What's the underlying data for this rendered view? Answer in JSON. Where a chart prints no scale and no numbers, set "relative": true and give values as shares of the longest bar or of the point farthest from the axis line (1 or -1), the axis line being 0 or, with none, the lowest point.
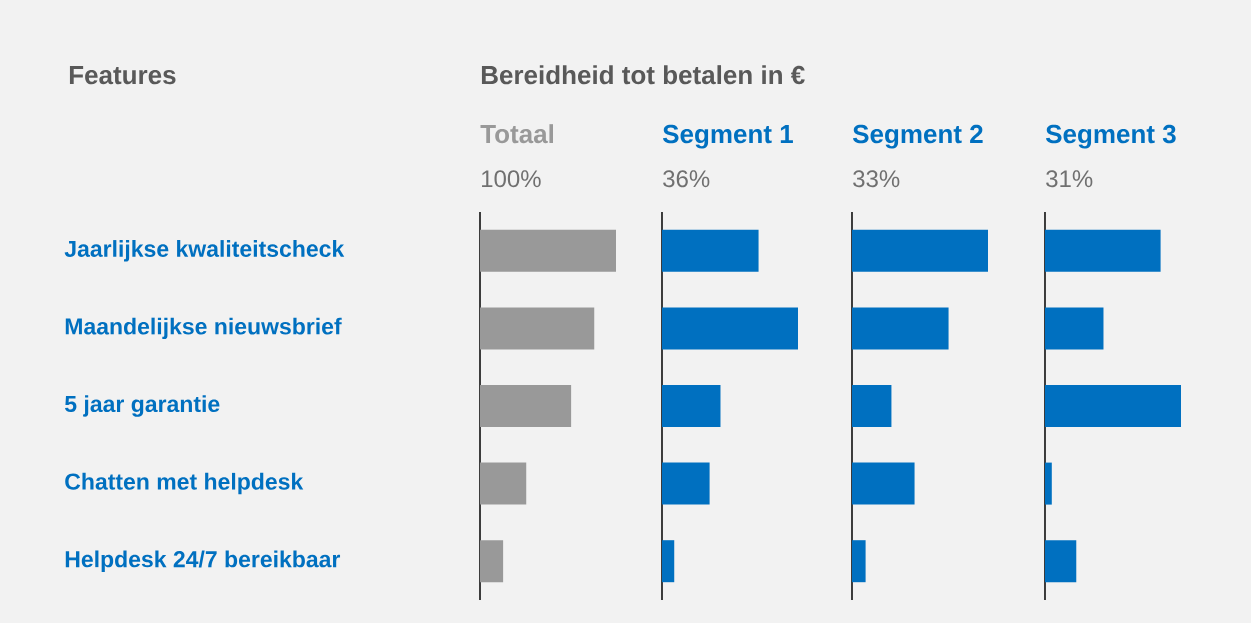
{
  "chart_data": [
    {
      "type": "bar",
      "orientation": "horizontal",
      "relative": true,
      "title": "Totaal",
      "subtitle": "100%",
      "ylabel": "Features",
      "annotations": [
        "Bereidheid tot betalen in €"
      ],
      "tick_labels": "y",
      "color": "#999999",
      "categories": [
        "Jaarlijkse kwaliteitscheck",
        "Maandelijkse nieuwsbrief",
        "5 jaar garantie",
        "Chatten met helpdesk",
        "Helpdesk 24/7 bereikbaar"
      ],
      "values": [
        1,
        0.84,
        0.67,
        0.34,
        0.17
      ]
    },
    {
      "type": "bar",
      "orientation": "horizontal",
      "relative": true,
      "title": "Segment 1",
      "subtitle": "36%",
      "color": "#0070c0",
      "values": [
        0.71,
        1,
        0.43,
        0.35,
        0.09
      ]
    },
    {
      "type": "bar",
      "orientation": "horizontal",
      "relative": true,
      "title": "Segment 2",
      "subtitle": "33%",
      "color": "#0070c0",
      "values": [
        1,
        0.71,
        0.29,
        0.46,
        0.1
      ]
    },
    {
      "type": "bar",
      "orientation": "horizontal",
      "relative": true,
      "title": "Segment 3",
      "subtitle": "31%",
      "color": "#0070c0",
      "values": [
        0.85,
        0.43,
        1,
        0.05,
        0.23
      ]
    }
  ]
}
